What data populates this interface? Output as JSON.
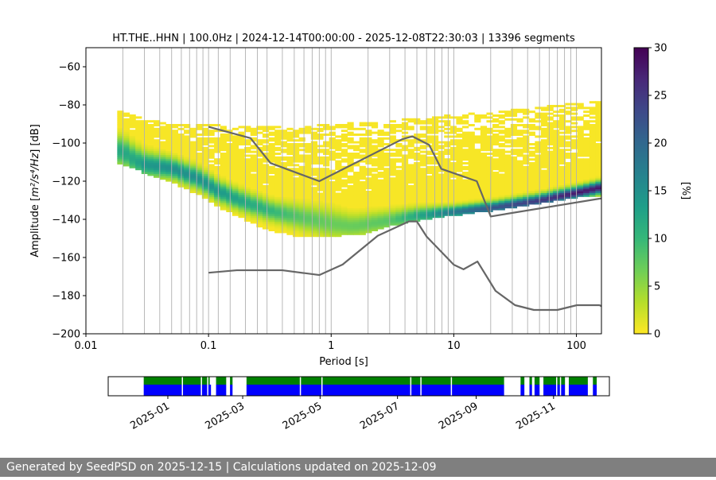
{
  "chart_data": {
    "type": "heatmap",
    "title": "HT.THE..HHN | 100.0Hz | 2024-12-14T00:00:00 - 2025-12-08T22:30:03 | 13396 segments",
    "xlabel": "Period [s]",
    "ylabel_prefix": "Amplitude [",
    "ylabel_units": "m²/s⁴/Hz",
    "ylabel_suffix": "] [dB]",
    "xscale": "log",
    "xlim": [
      0.01,
      160
    ],
    "ylim": [
      -200,
      -50
    ],
    "xticks": [
      0.01,
      0.1,
      1,
      10,
      100
    ],
    "xtick_labels": [
      "0.01",
      "0.1",
      "1",
      "10",
      "100"
    ],
    "yticks": [
      -200,
      -180,
      -160,
      -140,
      -120,
      -100,
      -80,
      -60
    ],
    "ytick_labels": [
      "−200",
      "−180",
      "−160",
      "−140",
      "−120",
      "−100",
      "−80",
      "−60"
    ],
    "grid_periods": [
      0.1,
      0.12,
      0.15,
      0.2,
      0.25,
      0.3,
      0.4,
      0.5,
      0.6,
      0.7,
      0.8,
      0.9,
      1,
      2,
      3,
      4,
      5,
      6,
      7,
      8,
      9,
      10,
      20,
      30,
      40,
      50,
      60,
      70,
      80,
      90,
      100,
      0.02,
      0.03,
      0.04,
      0.05,
      0.06,
      0.07,
      0.08,
      0.09
    ],
    "colorbar": {
      "label": "[%]",
      "range": [
        0,
        30
      ],
      "ticks": [
        0,
        5,
        10,
        15,
        20,
        25,
        30
      ],
      "colormap": [
        "#fde725",
        "#b5de2b",
        "#6ece58",
        "#35b779",
        "#1f9e89",
        "#26828e",
        "#31688e",
        "#3e4989",
        "#482878",
        "#440154"
      ]
    },
    "nhnm": {
      "name": "New High Noise Model",
      "color": "#666666",
      "points": [
        [
          0.1,
          -91.5
        ],
        [
          0.22,
          -97.4
        ],
        [
          0.32,
          -110.5
        ],
        [
          0.8,
          -120
        ],
        [
          3.8,
          -98
        ],
        [
          4.6,
          -96.5
        ],
        [
          6.3,
          -101
        ],
        [
          7.9,
          -113.5
        ],
        [
          15.4,
          -120
        ],
        [
          20,
          -138.5
        ],
        [
          160,
          -129
        ]
      ]
    },
    "nlnm": {
      "name": "New Low Noise Model",
      "color": "#666666",
      "points": [
        [
          0.1,
          -168
        ],
        [
          0.17,
          -166.7
        ],
        [
          0.4,
          -166.7
        ],
        [
          0.8,
          -169.2
        ],
        [
          1.24,
          -163.7
        ],
        [
          2.4,
          -148.6
        ],
        [
          4.3,
          -141.1
        ],
        [
          5,
          -141.1
        ],
        [
          6,
          -149
        ],
        [
          10,
          -163.8
        ],
        [
          12,
          -166.2
        ],
        [
          15.6,
          -162.1
        ],
        [
          21.9,
          -177.5
        ],
        [
          31.6,
          -185
        ],
        [
          45,
          -187.5
        ],
        [
          70,
          -187.5
        ],
        [
          101,
          -185
        ],
        [
          154,
          -185
        ],
        [
          160,
          -185.5
        ]
      ]
    },
    "psd_mode": {
      "name": "Dominant PPSD band",
      "points": [
        [
          0.02,
          -104
        ],
        [
          0.025,
          -109
        ],
        [
          0.03,
          -111
        ],
        [
          0.05,
          -113
        ],
        [
          0.08,
          -118
        ],
        [
          0.12,
          -125
        ],
        [
          0.2,
          -131
        ],
        [
          0.35,
          -136
        ],
        [
          0.55,
          -138.5
        ],
        [
          1,
          -142
        ],
        [
          1.5,
          -143.5
        ],
        [
          3,
          -140.5
        ],
        [
          5,
          -138
        ],
        [
          10,
          -136
        ],
        [
          20,
          -134
        ],
        [
          50,
          -130
        ],
        [
          100,
          -126
        ],
        [
          160,
          -123
        ]
      ]
    },
    "psd_mode_width_db": [
      7,
      7,
      6,
      5,
      5,
      5,
      5,
      5,
      6,
      7,
      6,
      5,
      4,
      3,
      3,
      3,
      3,
      3
    ],
    "psd_mode_peak_pct": [
      12,
      12,
      14,
      15,
      15,
      14,
      12,
      10,
      8,
      7,
      7,
      8,
      12,
      18,
      22,
      25,
      28,
      28
    ],
    "envelope_upper": {
      "points": [
        [
          0.018,
          -83
        ],
        [
          0.03,
          -88
        ],
        [
          0.05,
          -90
        ],
        [
          0.08,
          -90
        ],
        [
          0.12,
          -91
        ],
        [
          0.2,
          -91.5
        ],
        [
          0.4,
          -92
        ],
        [
          0.8,
          -91
        ],
        [
          1.5,
          -89
        ],
        [
          3,
          -89
        ],
        [
          5,
          -87
        ],
        [
          8,
          -86
        ],
        [
          13,
          -85
        ],
        [
          20,
          -84
        ],
        [
          40,
          -82
        ],
        [
          80,
          -80
        ],
        [
          160,
          -78
        ]
      ]
    },
    "envelope_lower": {
      "points": [
        [
          0.018,
          -110
        ],
        [
          0.03,
          -115
        ],
        [
          0.05,
          -120
        ],
        [
          0.08,
          -126
        ],
        [
          0.12,
          -133
        ],
        [
          0.2,
          -140
        ],
        [
          0.3,
          -145
        ],
        [
          0.5,
          -148
        ],
        [
          1,
          -148.5
        ],
        [
          2,
          -147
        ],
        [
          3,
          -143
        ],
        [
          5,
          -140
        ],
        [
          10,
          -137.5
        ],
        [
          20,
          -135
        ],
        [
          50,
          -131
        ],
        [
          100,
          -128
        ],
        [
          160,
          -127
        ]
      ]
    },
    "timeline": {
      "date_range": [
        "2024-12-14",
        "2025-12-08"
      ],
      "axis_range": [
        "2024-11-15",
        "2025-12-15"
      ],
      "xticks": [
        "2025-01-01",
        "2025-03-01",
        "2025-05-01",
        "2025-07-01",
        "2025-09-01",
        "2025-11-01"
      ],
      "xtick_labels": [
        "2025-01",
        "2025-03",
        "2025-05",
        "2025-07",
        "2025-09",
        "2025-11"
      ],
      "data_color": "#0000ff",
      "used_color": "#008000",
      "data_segments": [
        [
          "2024-12-13",
          "2025-02-04"
        ],
        [
          "2025-02-08",
          "2025-02-16"
        ],
        [
          "2025-02-19",
          "2025-02-21"
        ],
        [
          "2025-03-04",
          "2025-09-23"
        ],
        [
          "2025-10-06",
          "2025-10-09"
        ],
        [
          "2025-10-13",
          "2025-10-15"
        ],
        [
          "2025-10-17",
          "2025-10-21"
        ],
        [
          "2025-10-24",
          "2025-11-10"
        ],
        [
          "2025-11-13",
          "2025-11-28"
        ],
        [
          "2025-12-02",
          "2025-12-05"
        ]
      ],
      "used_segments": [
        [
          "2024-12-13",
          "2025-02-03"
        ],
        [
          "2025-02-08",
          "2025-02-16"
        ],
        [
          "2025-02-19",
          "2025-02-21"
        ],
        [
          "2025-03-04",
          "2025-09-23"
        ],
        [
          "2025-10-06",
          "2025-10-09"
        ],
        [
          "2025-10-13",
          "2025-10-15"
        ],
        [
          "2025-10-17",
          "2025-10-21"
        ],
        [
          "2025-10-24",
          "2025-11-10"
        ],
        [
          "2025-11-13",
          "2025-11-28"
        ],
        [
          "2025-12-02",
          "2025-12-05"
        ]
      ],
      "gap_marks": [
        "2025-01-12",
        "2025-01-27",
        "2025-02-01",
        "2025-04-15",
        "2025-05-02",
        "2025-07-11",
        "2025-07-19",
        "2025-08-12",
        "2025-10-11",
        "2025-10-12",
        "2025-10-22",
        "2025-11-03",
        "2025-11-06",
        "2025-11-11",
        "2025-11-29"
      ]
    }
  },
  "footer": {
    "text": "Generated by SeedPSD on 2025-12-15 | Calculations updated on 2025-12-09"
  }
}
